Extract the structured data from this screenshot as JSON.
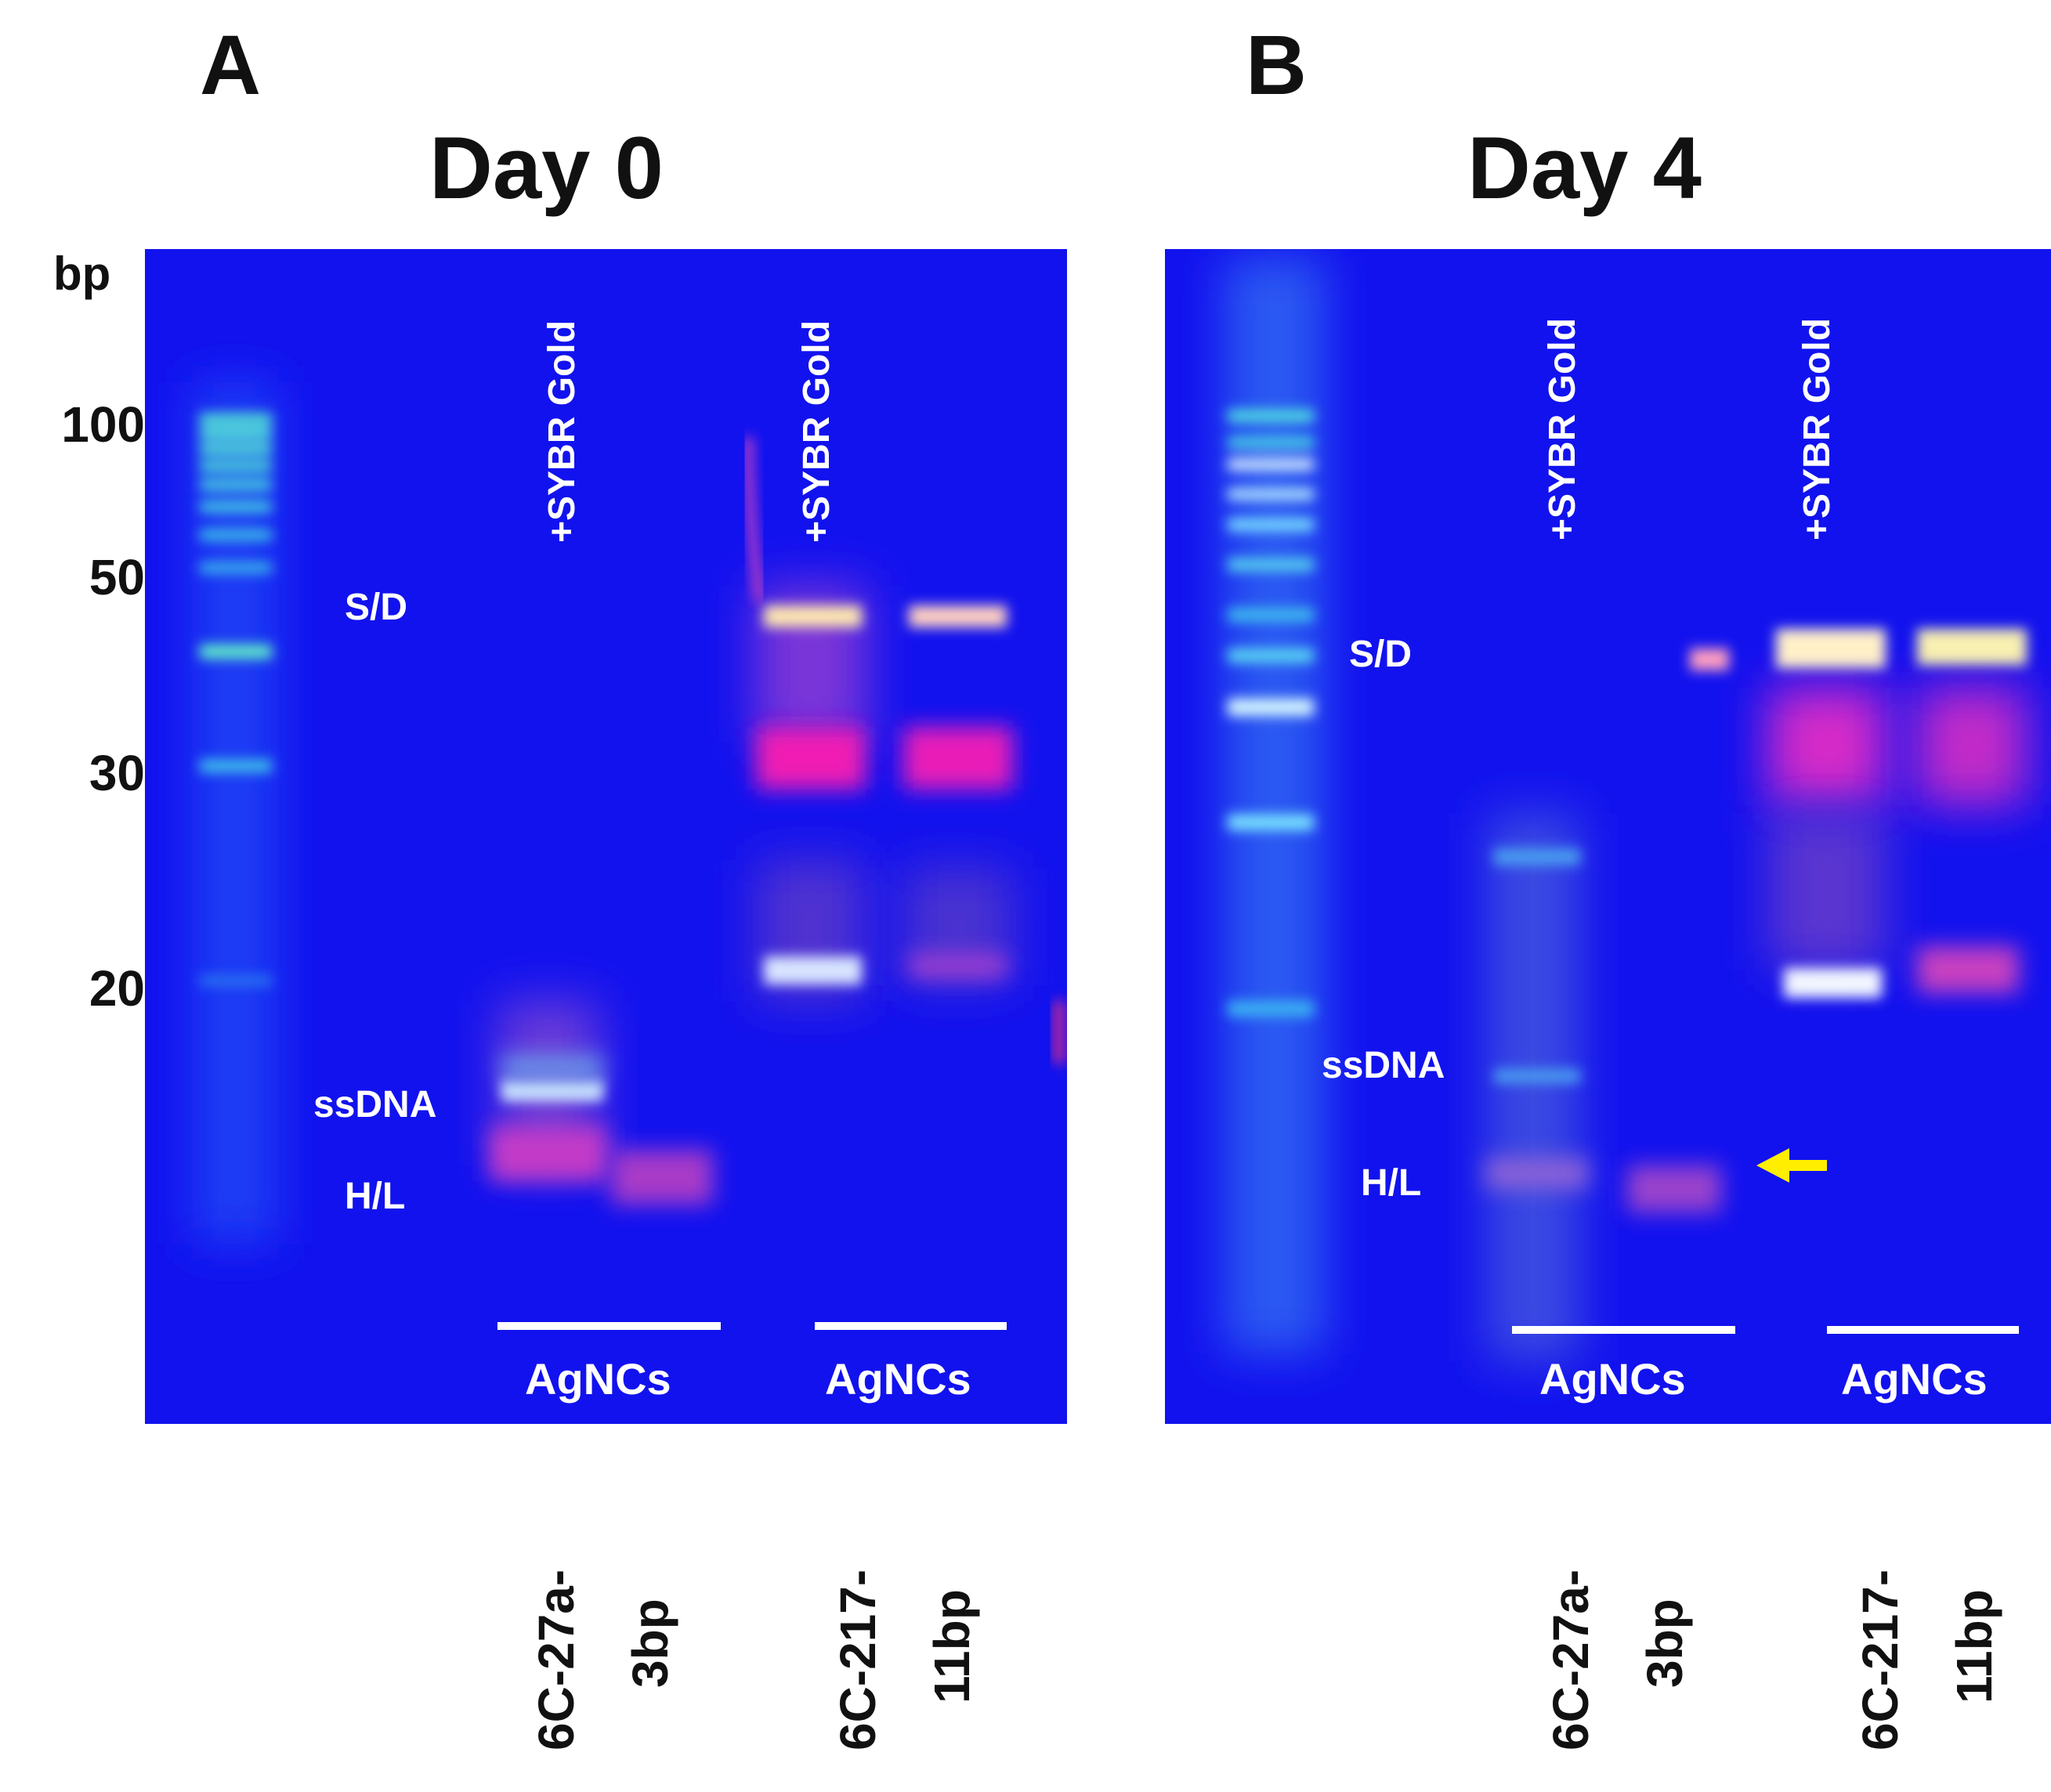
{
  "panels": [
    {
      "letter": "A",
      "title": "Day 0",
      "sybr_labels": [
        "+SYBR Gold",
        "+SYBR Gold"
      ],
      "band_labels": {
        "sd": "S/D",
        "ssdna": "ssDNA",
        "hl": "H/L"
      },
      "agncs": [
        "AgNCs",
        "AgNCs"
      ],
      "samples": [
        {
          "line1": "6C-27a-",
          "line2": "3bp"
        },
        {
          "line1": "6C-217-",
          "line2": "11bp"
        }
      ]
    },
    {
      "letter": "B",
      "title": "Day 4",
      "sybr_labels": [
        "+SYBR Gold",
        "+SYBR Gold"
      ],
      "band_labels": {
        "sd": "S/D",
        "ssdna": "ssDNA",
        "hl": "H/L"
      },
      "agncs": [
        "AgNCs",
        "AgNCs"
      ],
      "samples": [
        {
          "line1": "6C-27a-",
          "line2": "3bp"
        },
        {
          "line1": "6C-217-",
          "line2": "11bp"
        }
      ]
    }
  ],
  "ladder": {
    "unit": "bp",
    "markers": [
      "100",
      "50",
      "30",
      "20"
    ]
  },
  "colors": {
    "gel_background": "#1212ee",
    "arrow": "#ffee00"
  }
}
